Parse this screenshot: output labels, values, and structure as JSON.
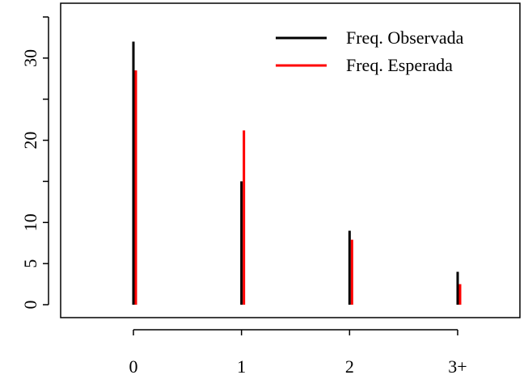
{
  "chart_data": {
    "type": "bar",
    "categories": [
      "0",
      "1",
      "2",
      "3+"
    ],
    "series": [
      {
        "name": "Freq. Observada",
        "values": [
          32,
          15,
          9,
          4
        ],
        "color": "#000000"
      },
      {
        "name": "Freq. Esperada",
        "values": [
          28.5,
          21.2,
          7.9,
          2.5
        ],
        "color": "#ff0000"
      }
    ],
    "y_ticks": [
      0,
      5,
      10,
      20,
      30
    ],
    "ylim": [
      0,
      35
    ],
    "title": "",
    "xlabel": "",
    "ylabel": "",
    "grid": false,
    "legend_position": "top-right",
    "legend_box": false
  }
}
